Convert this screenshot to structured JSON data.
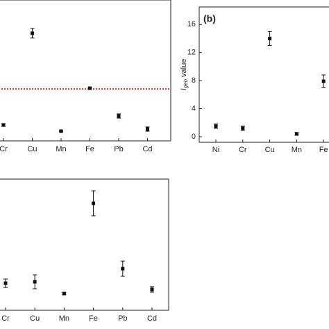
{
  "chart_data": [
    {
      "type": "scatter",
      "categories": [
        "Cr",
        "Cu",
        "Mn",
        "Fe",
        "Pb",
        "Cd"
      ],
      "values": [
        11.3,
        76.4,
        6.9,
        37.4,
        17.7,
        8.4
      ],
      "errors": [
        1,
        3.4,
        0.5,
        0.5,
        1.5,
        1.5
      ],
      "ylim": [
        0,
        100
      ],
      "color": "#111111",
      "reference_line": {
        "value": 36.9,
        "color": "#d62728"
      }
    },
    {
      "type": "scatter",
      "label": "(b)",
      "y_label": {
        "symbol": "I",
        "subscript": "geo",
        "text": "value"
      },
      "categories": [
        "Ni",
        "Cr",
        "Cu",
        "Mn",
        "Fe"
      ],
      "values": [
        1.5,
        1.2,
        14,
        0.4,
        7.9
      ],
      "errors": [
        0.3,
        0.3,
        1,
        0.2,
        0.9
      ],
      "ylim": [
        -0.8,
        18.5
      ],
      "yticks": [
        0,
        4,
        8,
        12,
        16
      ],
      "color": "#111111"
    },
    {
      "type": "scatter",
      "categories": [
        "Cr",
        "Cu",
        "Mn",
        "Fe",
        "Pb",
        "Cd"
      ],
      "values": [
        20.6,
        21.7,
        12.7,
        81.5,
        31.7,
        15.9
      ],
      "errors": [
        3.2,
        5.3,
        0.8,
        9.5,
        5.8,
        2.1
      ],
      "ylim": [
        0,
        100
      ],
      "color": "#111111"
    }
  ]
}
